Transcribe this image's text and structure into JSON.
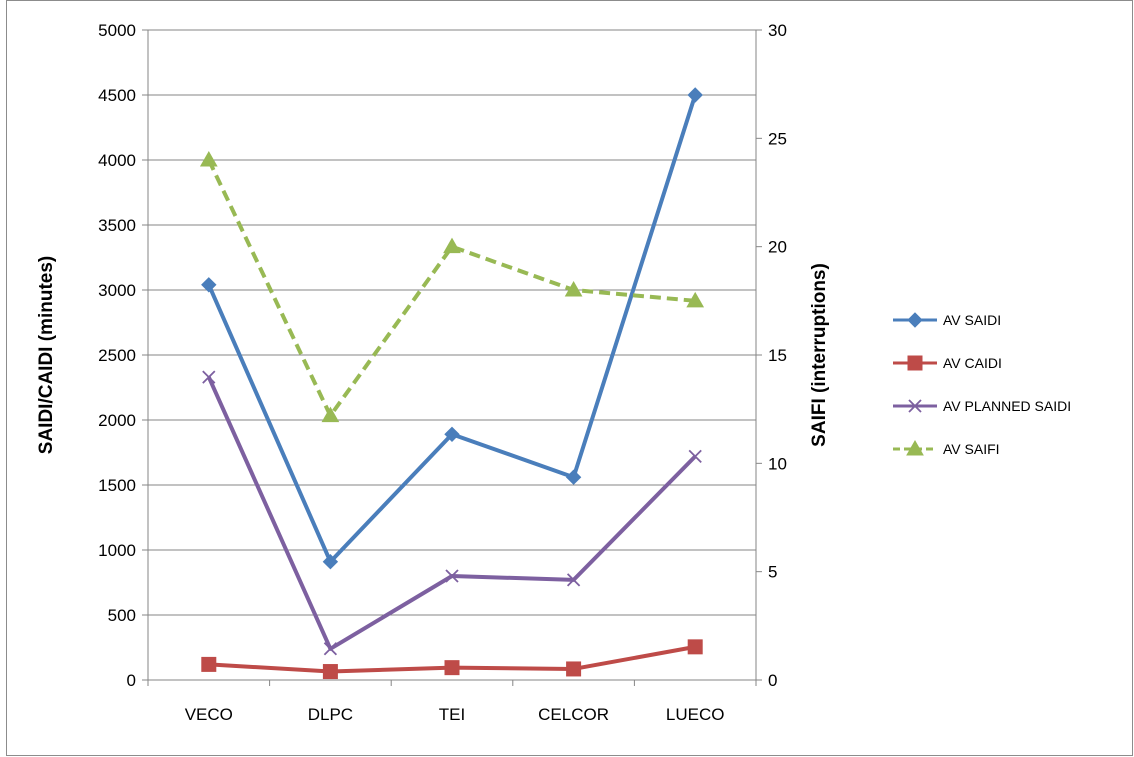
{
  "chart_data": {
    "type": "line",
    "categories": [
      "VECO",
      "DLPC",
      "TEI",
      "CELCOR",
      "LUECO"
    ],
    "ylabel": "SAIDI/CAIDI (minutes)",
    "y2label": "SAIFI (interruptions)",
    "ylim": [
      0,
      5000
    ],
    "y2lim": [
      0,
      30
    ],
    "yticks": [
      "0",
      "500",
      "1000",
      "1500",
      "2000",
      "2500",
      "3000",
      "3500",
      "4000",
      "4500",
      "5000"
    ],
    "y2ticks": [
      "0",
      "5",
      "10",
      "15",
      "20",
      "25",
      "30"
    ],
    "grid": true,
    "legend_position": "right",
    "series": [
      {
        "name": "AV SAIDI",
        "axis": "left",
        "values": [
          3040,
          910,
          1890,
          1560,
          4500
        ],
        "color": "#4a7ebb",
        "marker": "diamond",
        "dash": false
      },
      {
        "name": "AV CAIDI",
        "axis": "left",
        "values": [
          120,
          65,
          95,
          85,
          255
        ],
        "color": "#be4b48",
        "marker": "square",
        "dash": false
      },
      {
        "name": "AV PLANNED SAIDI",
        "axis": "left",
        "values": [
          2330,
          240,
          800,
          770,
          1720
        ],
        "color": "#7d60a0",
        "marker": "x",
        "dash": false
      },
      {
        "name": "AV SAIFI",
        "axis": "right",
        "values": [
          24,
          12.2,
          20,
          18,
          17.5
        ],
        "color": "#98b954",
        "marker": "triangle",
        "dash": true
      }
    ]
  }
}
